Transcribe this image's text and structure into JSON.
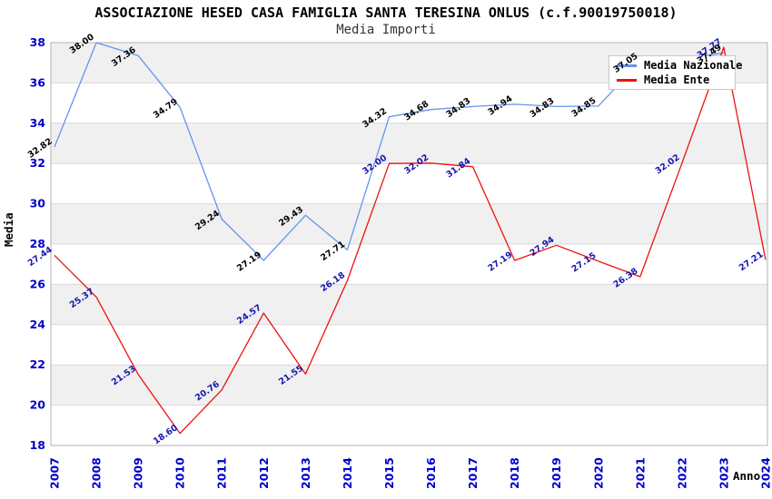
{
  "title": "ASSOCIAZIONE HESED CASA FAMIGLIA SANTA TERESINA ONLUS (c.f.90019750018)",
  "subtitle": "Media Importi",
  "axes": {
    "x_label": "Anno",
    "y_label": "Media"
  },
  "legend": {
    "items": [
      {
        "label": "Media Nazionale",
        "color": "#6495ED"
      },
      {
        "label": "Media Ente",
        "color": "#ee1111"
      }
    ]
  },
  "colors": {
    "national_line": "#6495ED",
    "ente_line": "#ee1111",
    "national_point_label": "#000000",
    "ente_point_label": "#1515b0",
    "axis_tick_label": "#0000cc",
    "band_gray": "#f0f0f0",
    "grid_line": "#d9d9d9",
    "plot_border": "#b3b3b3"
  },
  "chart_data": {
    "type": "line",
    "title": "ASSOCIAZIONE HESED CASA FAMIGLIA SANTA TERESINA ONLUS (c.f.90019750018)",
    "subtitle": "Media Importi",
    "xlabel": "Anno",
    "ylabel": "Media",
    "ylim": [
      18,
      38
    ],
    "y_ticks": [
      18,
      20,
      22,
      24,
      26,
      28,
      30,
      32,
      34,
      36,
      38
    ],
    "x_ticks": [
      2007,
      2008,
      2009,
      2010,
      2011,
      2012,
      2013,
      2014,
      2015,
      2016,
      2017,
      2018,
      2019,
      2020,
      2021,
      2022,
      2023,
      2024
    ],
    "grid": "alternating horizontal gray/white bands every 2 units",
    "legend_position": "top-right inside plot",
    "series": [
      {
        "name": "Media Nazionale",
        "color": "#6495ED",
        "label_color": "#000000",
        "points": [
          {
            "x": 2007,
            "y": 32.82,
            "label": "32.82"
          },
          {
            "x": 2008,
            "y": 38.0,
            "label": "38.00"
          },
          {
            "x": 2009,
            "y": 37.36,
            "label": "37.36"
          },
          {
            "x": 2010,
            "y": 34.79,
            "label": "34.79"
          },
          {
            "x": 2011,
            "y": 29.24,
            "label": "29.24"
          },
          {
            "x": 2012,
            "y": 27.19,
            "label": "27.19"
          },
          {
            "x": 2013,
            "y": 29.43,
            "label": "29.43"
          },
          {
            "x": 2014,
            "y": 27.71,
            "label": "27.71"
          },
          {
            "x": 2015,
            "y": 34.32,
            "label": "34.32"
          },
          {
            "x": 2016,
            "y": 34.68,
            "label": "34.68"
          },
          {
            "x": 2017,
            "y": 34.83,
            "label": "34.83"
          },
          {
            "x": 2018,
            "y": 34.94,
            "label": "34.94"
          },
          {
            "x": 2019,
            "y": 34.83,
            "label": "34.83"
          },
          {
            "x": 2020,
            "y": 34.85,
            "label": "34.85"
          },
          {
            "x": 2021,
            "y": 37.05,
            "label": "37.05"
          },
          {
            "x": 2022,
            "y": 37.2,
            "label": null
          },
          {
            "x": 2023,
            "y": 37.49,
            "label": "37.49"
          }
        ]
      },
      {
        "name": "Media Ente",
        "color": "#ee1111",
        "label_color": "#1515b0",
        "points": [
          {
            "x": 2007,
            "y": 27.44,
            "label": "27.44"
          },
          {
            "x": 2008,
            "y": 25.37,
            "label": "25.37"
          },
          {
            "x": 2009,
            "y": 21.53,
            "label": "21.53"
          },
          {
            "x": 2010,
            "y": 18.6,
            "label": "18.60"
          },
          {
            "x": 2011,
            "y": 20.76,
            "label": "20.76"
          },
          {
            "x": 2012,
            "y": 24.57,
            "label": "24.57"
          },
          {
            "x": 2013,
            "y": 21.55,
            "label": "21.55"
          },
          {
            "x": 2014,
            "y": 26.18,
            "label": "26.18"
          },
          {
            "x": 2015,
            "y": 32.0,
            "label": "32.00"
          },
          {
            "x": 2016,
            "y": 32.02,
            "label": "32.02"
          },
          {
            "x": 2017,
            "y": 31.84,
            "label": "31.84"
          },
          {
            "x": 2018,
            "y": 27.19,
            "label": "27.19"
          },
          {
            "x": 2019,
            "y": 27.94,
            "label": "27.94"
          },
          {
            "x": 2020,
            "y": 27.15,
            "label": "27.15"
          },
          {
            "x": 2021,
            "y": 26.38,
            "label": "26.38"
          },
          {
            "x": 2022,
            "y": 32.02,
            "label": "32.02"
          },
          {
            "x": 2023,
            "y": 37.77,
            "label": "37.77"
          },
          {
            "x": 2024,
            "y": 27.21,
            "label": "27.21"
          }
        ]
      }
    ]
  }
}
